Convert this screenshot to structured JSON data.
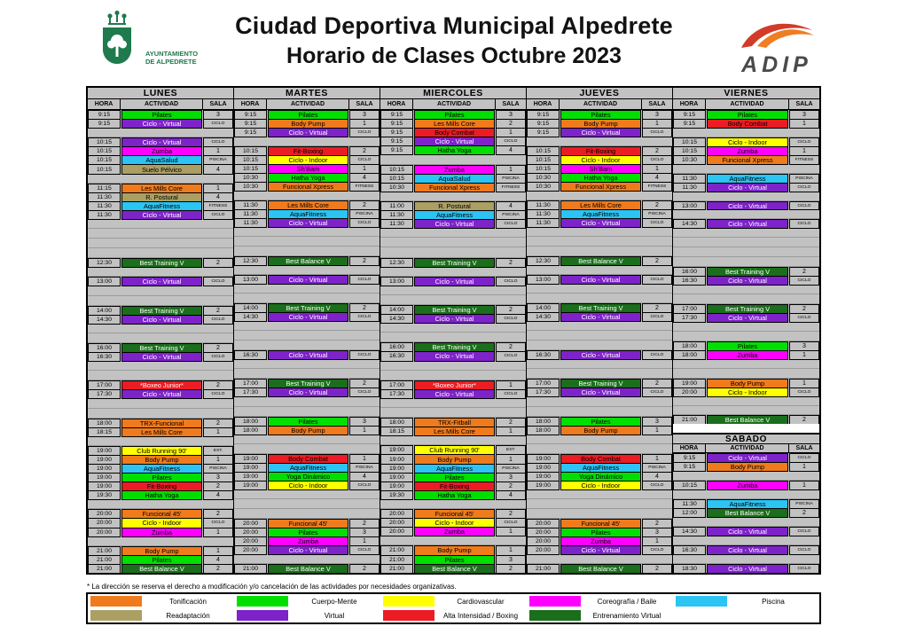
{
  "header": {
    "title_line1": "Ciudad Deportiva Municipal Alpedrete",
    "title_line2": "Horario de Clases Octubre 2023",
    "crest_text_line1": "AYUNTAMIENTO",
    "crest_text_line2": "DE ALPEDRETE",
    "adip_word": "ADIP"
  },
  "columns": {
    "hora": "HORA",
    "actividad": "ACTIVIDAD",
    "sala": "SALA"
  },
  "footnote": "* La dirección se reserva el derecho a modificación y/o cancelación de las actividades por necesidades organizativas.",
  "colors": {
    "table_gray": "#c2c2c2",
    "crest_green": "#1f7a4d",
    "adip_red": "#d23b27",
    "adip_orange": "#ef7d22"
  },
  "categories": {
    "tonificacion": {
      "label": "Tonificación",
      "color": "#ef7b1d",
      "text": "#000000"
    },
    "cuerpo_mente": {
      "label": "Cuerpo-Mente",
      "color": "#00df00",
      "text": "#000000"
    },
    "cardiovascular": {
      "label": "Cardiovascular",
      "color": "#ffff00",
      "text": "#000000"
    },
    "coreografia": {
      "label": "Coreografía / Baile",
      "color": "#ff00ff",
      "text": "#000000"
    },
    "piscina": {
      "label": "Piscina",
      "color": "#2bc4f3",
      "text": "#000000"
    },
    "readaptacion": {
      "label": "Readaptación",
      "color": "#ab9f63",
      "text": "#000000"
    },
    "virtual": {
      "label": "Virtual",
      "color": "#7e22c9",
      "text": "#ffffff"
    },
    "alta_intensidad": {
      "label": "Alta Intensidad / Boxing",
      "color": "#ec1c24",
      "text": "#000000"
    },
    "entrenamiento_virtual": {
      "label": "Entrenamiento Virtual",
      "color": "#1b6e1b",
      "text": "#ffffff"
    }
  },
  "legend": {
    "rows": [
      [
        "tonificacion",
        "cuerpo_mente",
        "cardiovascular",
        "coreografia",
        "piscina"
      ],
      [
        "readaptacion",
        "virtual",
        "alta_intensidad",
        "entrenamiento_virtual",
        null
      ]
    ]
  },
  "days": [
    {
      "name": "LUNES",
      "rows": [
        [
          "9:15",
          "Pilates",
          "3",
          "cuerpo_mente"
        ],
        [
          "9:15",
          "Ciclo - Virtual",
          "CICLO",
          "virtual"
        ],
        null,
        [
          "10:15",
          "Ciclo - Virtual",
          "CICLO",
          "virtual"
        ],
        [
          "10:15",
          "Zumba",
          "1",
          "coreografia"
        ],
        [
          "10:15",
          "AquaSalud",
          "PISCINA",
          "piscina"
        ],
        [
          "10:15",
          "Suelo Pélvico",
          "4",
          "readaptacion"
        ],
        null,
        [
          "11:15",
          "Les Mills Core",
          "1",
          "tonificacion"
        ],
        [
          "11:30",
          "R. Postural",
          "4",
          "readaptacion"
        ],
        [
          "11:30",
          "AquaFitness",
          "FITNESS",
          "piscina"
        ],
        [
          "11:30",
          "Ciclo - Virtual",
          "CICLO",
          "virtual"
        ],
        null,
        null,
        null,
        null,
        [
          "12:30",
          "Best Training V",
          "2",
          "entrenamiento_virtual"
        ],
        null,
        [
          "13:00",
          "Ciclo - Virtual",
          "CICLO",
          "virtual"
        ],
        null,
        null,
        [
          "14:00",
          "Best Training V",
          "2",
          "entrenamiento_virtual"
        ],
        [
          "14:30",
          "Ciclo - Virtual",
          "CICLO",
          "virtual"
        ],
        null,
        null,
        [
          "16:00",
          "Best Training V",
          "2",
          "entrenamiento_virtual"
        ],
        [
          "16:30",
          "Ciclo - Virtual",
          "CICLO",
          "virtual"
        ],
        null,
        null,
        [
          "17:00",
          "*Boxeo Junior*",
          "2",
          "alta_intensidad",
          "w"
        ],
        [
          "17:30",
          "Ciclo - Virtual",
          "CICLO",
          "virtual"
        ],
        null,
        null,
        [
          "18:00",
          "TRX-Funcional",
          "2",
          "tonificacion"
        ],
        [
          "18:15",
          "Les Mills Core",
          "1",
          "tonificacion"
        ],
        null,
        [
          "19:00",
          "Club Running 90'",
          "EXT.",
          "cardiovascular"
        ],
        [
          "19:00",
          "Body Pump",
          "1",
          "tonificacion"
        ],
        [
          "19:00",
          "AquaFitness",
          "PISCINA",
          "piscina"
        ],
        [
          "19:00",
          "Pilates",
          "3",
          "cuerpo_mente"
        ],
        [
          "19:00",
          "Fit-Boxing",
          "2",
          "alta_intensidad"
        ],
        [
          "19:30",
          "Hatha Yoga",
          "4",
          "cuerpo_mente"
        ],
        null,
        [
          "20:00",
          "Funcional 45'",
          "2",
          "tonificacion"
        ],
        [
          "20:00",
          "Ciclo - Indoor",
          "CICLO",
          "cardiovascular"
        ],
        [
          "20:00",
          "Zumba",
          "1",
          "coreografia"
        ],
        null,
        [
          "21:00",
          "Body Pump",
          "1",
          "tonificacion"
        ],
        [
          "21:00",
          "Pilates",
          "4",
          "cuerpo_mente"
        ],
        [
          "21:00",
          "Best Balance V",
          "2",
          "entrenamiento_virtual"
        ]
      ]
    },
    {
      "name": "MARTES",
      "rows": [
        [
          "9:15",
          "Pilates",
          "3",
          "cuerpo_mente"
        ],
        [
          "9:15",
          "Body Pump",
          "1",
          "tonificacion"
        ],
        [
          "9:15",
          "Ciclo - Virtual",
          "CICLO",
          "virtual"
        ],
        null,
        [
          "10:15",
          "Fit-Boxing",
          "2",
          "alta_intensidad"
        ],
        [
          "10:15",
          "Ciclo - Indoor",
          "CICLO",
          "cardiovascular"
        ],
        [
          "10:15",
          "Sh'Bam",
          "1",
          "coreografia"
        ],
        [
          "10:30",
          "Hatha Yoga",
          "4",
          "cuerpo_mente"
        ],
        [
          "10:30",
          "Funcional Xpress",
          "FITNESS",
          "tonificacion"
        ],
        null,
        [
          "11:30",
          "Les Mills Core",
          "2",
          "tonificacion"
        ],
        [
          "11:30",
          "AquaFitness",
          "PISCINA",
          "piscina"
        ],
        [
          "11:30",
          "Ciclo - Virtual",
          "CICLO",
          "virtual"
        ],
        null,
        null,
        null,
        [
          "12:30",
          "Best Balance V",
          "2",
          "entrenamiento_virtual"
        ],
        null,
        [
          "13:00",
          "Ciclo - Virtual",
          "CICLO",
          "virtual"
        ],
        null,
        null,
        [
          "14:00",
          "Best Training V",
          "2",
          "entrenamiento_virtual"
        ],
        [
          "14:30",
          "Ciclo - Virtual",
          "CICLO",
          "virtual"
        ],
        null,
        null,
        null,
        [
          "16:30",
          "Ciclo - Virtual",
          "CICLO",
          "virtual"
        ],
        null,
        null,
        [
          "17:00",
          "Best Training V",
          "2",
          "entrenamiento_virtual"
        ],
        [
          "17:30",
          "Ciclo - Virtual",
          "CICLO",
          "virtual"
        ],
        null,
        null,
        [
          "18:00",
          "Pilates",
          "3",
          "cuerpo_mente"
        ],
        [
          "18:00",
          "Body Pump",
          "1",
          "tonificacion"
        ],
        null,
        null,
        [
          "19:00",
          "Body Combat",
          "1",
          "alta_intensidad"
        ],
        [
          "19:00",
          "AquaFitness",
          "PISCINA",
          "piscina"
        ],
        [
          "19:00",
          "Yoga Dinámico",
          "4",
          "cuerpo_mente"
        ],
        [
          "19:00",
          "Ciclo - Indoor",
          "CICLO",
          "cardiovascular"
        ],
        null,
        null,
        null,
        [
          "20:00",
          "Funcional 45'",
          "2",
          "tonificacion"
        ],
        [
          "20:00",
          "Pilates",
          "3",
          "cuerpo_mente"
        ],
        [
          "20:00",
          "Zumba",
          "1",
          "coreografia"
        ],
        [
          "20:00",
          "Ciclo - Virtual",
          "CICLO",
          "virtual"
        ],
        null,
        [
          "21:00",
          "Best Balance V",
          "2",
          "entrenamiento_virtual"
        ]
      ]
    },
    {
      "name": "MIERCOLES",
      "rows": [
        [
          "9:15",
          "Pilates",
          "3",
          "cuerpo_mente"
        ],
        [
          "9:15",
          "Les Mills Core",
          "2",
          "tonificacion"
        ],
        [
          "9:15",
          "Body Combat",
          "1",
          "alta_intensidad"
        ],
        [
          "9:15",
          "Ciclo - Virtual",
          "CICLO",
          "virtual"
        ],
        [
          "9:15",
          "Hatha Yoga",
          "4",
          "cuerpo_mente"
        ],
        null,
        [
          "10:15",
          "Zumba",
          "1",
          "coreografia"
        ],
        [
          "10:15",
          "AquaSalud",
          "PISCINA",
          "piscina"
        ],
        [
          "10:30",
          "Funcional Xpress",
          "FITNESS",
          "tonificacion"
        ],
        null,
        [
          "11:00",
          "R. Postural",
          "4",
          "readaptacion"
        ],
        [
          "11:30",
          "AquaFitness",
          "PISCINA",
          "piscina"
        ],
        [
          "11:30",
          "Ciclo - Virtual",
          "CICLO",
          "virtual"
        ],
        null,
        null,
        null,
        [
          "12:30",
          "Best Training V",
          "2",
          "entrenamiento_virtual"
        ],
        null,
        [
          "13:00",
          "Ciclo - Virtual",
          "CICLO",
          "virtual"
        ],
        null,
        null,
        [
          "14:00",
          "Best Training V",
          "2",
          "entrenamiento_virtual"
        ],
        [
          "14:30",
          "Ciclo - Virtual",
          "CICLO",
          "virtual"
        ],
        null,
        null,
        [
          "16:00",
          "Best Training V",
          "2",
          "entrenamiento_virtual"
        ],
        [
          "16:30",
          "Ciclo - Virtual",
          "CICLO",
          "virtual"
        ],
        null,
        null,
        [
          "17:00",
          "*Boxeo Junior*",
          "1",
          "alta_intensidad",
          "w"
        ],
        [
          "17:30",
          "Ciclo - Virtual",
          "CICLO",
          "virtual"
        ],
        null,
        null,
        [
          "18:00",
          "TRX-Fitball",
          "2",
          "tonificacion"
        ],
        [
          "18:15",
          "Les Mills Core",
          "1",
          "tonificacion"
        ],
        null,
        [
          "19:00",
          "Club Running 90'",
          "EXT.",
          "cardiovascular"
        ],
        [
          "19:00",
          "Body Pump",
          "1",
          "tonificacion"
        ],
        [
          "19:00",
          "AquaFitness",
          "PISCINA",
          "piscina"
        ],
        [
          "19:00",
          "Pilates",
          "3",
          "cuerpo_mente"
        ],
        [
          "19:00",
          "Fit-Boxing",
          "2",
          "alta_intensidad"
        ],
        [
          "19:30",
          "Hatha Yoga",
          "4",
          "cuerpo_mente"
        ],
        null,
        [
          "20:00",
          "Funcional 45'",
          "2",
          "tonificacion"
        ],
        [
          "20:00",
          "Ciclo - Indoor",
          "CICLO",
          "cardiovascular"
        ],
        [
          "20:00",
          "Zumba",
          "1",
          "coreografia"
        ],
        null,
        [
          "21:00",
          "Body Pump",
          "1",
          "tonificacion"
        ],
        [
          "21:00",
          "Pilates",
          "3",
          "cuerpo_mente"
        ],
        [
          "21:00",
          "Best Balance V",
          "2",
          "entrenamiento_virtual"
        ]
      ]
    },
    {
      "name": "JUEVES",
      "rows": [
        [
          "9:15",
          "Pilates",
          "3",
          "cuerpo_mente"
        ],
        [
          "9:15",
          "Body Pump",
          "1",
          "tonificacion"
        ],
        [
          "9:15",
          "Ciclo - Virtual",
          "CICLO",
          "virtual"
        ],
        null,
        [
          "10:15",
          "Fit-Boxing",
          "2",
          "alta_intensidad"
        ],
        [
          "10:15",
          "Ciclo - Indoor",
          "CICLO",
          "cardiovascular"
        ],
        [
          "10:15",
          "Sh'Bam",
          "1",
          "coreografia"
        ],
        [
          "10:30",
          "Hatha Yoga",
          "4",
          "cuerpo_mente"
        ],
        [
          "10:30",
          "Funcional Xpress",
          "FITNESS",
          "tonificacion"
        ],
        null,
        [
          "11:30",
          "Les Mills Core",
          "2",
          "tonificacion"
        ],
        [
          "11:30",
          "AquaFitness",
          "PISCINA",
          "piscina"
        ],
        [
          "11:30",
          "Ciclo - Virtual",
          "CICLO",
          "virtual"
        ],
        null,
        null,
        null,
        [
          "12:30",
          "Best Balance V",
          "2",
          "entrenamiento_virtual"
        ],
        null,
        [
          "13:00",
          "Ciclo - Virtual",
          "CICLO",
          "virtual"
        ],
        null,
        null,
        [
          "14:00",
          "Best Training V",
          "2",
          "entrenamiento_virtual"
        ],
        [
          "14:30",
          "Ciclo - Virtual",
          "CICLO",
          "virtual"
        ],
        null,
        null,
        null,
        [
          "16:30",
          "Ciclo - Virtual",
          "CICLO",
          "virtual"
        ],
        null,
        null,
        [
          "17:00",
          "Best Training V",
          "2",
          "entrenamiento_virtual"
        ],
        [
          "17:30",
          "Ciclo - Virtual",
          "CICLO",
          "virtual"
        ],
        null,
        null,
        [
          "18:00",
          "Pilates",
          "3",
          "cuerpo_mente"
        ],
        [
          "18:00",
          "Body Pump",
          "1",
          "tonificacion"
        ],
        null,
        null,
        [
          "19:00",
          "Body Combat",
          "1",
          "alta_intensidad"
        ],
        [
          "19:00",
          "AquaFitness",
          "PISCINA",
          "piscina"
        ],
        [
          "19:00",
          "Yoga Dinámico",
          "4",
          "cuerpo_mente"
        ],
        [
          "19:00",
          "Ciclo - Indoor",
          "CICLO",
          "cardiovascular"
        ],
        null,
        null,
        null,
        [
          "20:00",
          "Funcional 45'",
          "2",
          "tonificacion"
        ],
        [
          "20:00",
          "Pilates",
          "3",
          "cuerpo_mente"
        ],
        [
          "20:00",
          "Zumba",
          "1",
          "coreografia"
        ],
        [
          "20:00",
          "Ciclo - Virtual",
          "CICLO",
          "virtual"
        ],
        null,
        [
          "21:00",
          "Best Balance V",
          "2",
          "entrenamiento_virtual"
        ]
      ]
    },
    {
      "name": "VIERNES",
      "rows": [
        [
          "9:15",
          "Pilates",
          "3",
          "cuerpo_mente"
        ],
        [
          "9:15",
          "Body Combat",
          "1",
          "alta_intensidad"
        ],
        null,
        [
          "10:15",
          "Ciclo - Indoor",
          "CICLO",
          "cardiovascular"
        ],
        [
          "10:15",
          "Zumba",
          "1",
          "coreografia"
        ],
        [
          "10:30",
          "Funcional Xpress",
          "FITNESS",
          "tonificacion"
        ],
        null,
        [
          "11:30",
          "AquaFitness",
          "PISCINA",
          "piscina"
        ],
        [
          "11:30",
          "Ciclo - Virtual",
          "CICLO",
          "virtual"
        ],
        null,
        [
          "13:00",
          "Ciclo - Virtual",
          "CICLO",
          "virtual"
        ],
        null,
        [
          "14:30",
          "Ciclo - Virtual",
          "CICLO",
          "virtual"
        ],
        null,
        null,
        null,
        null,
        [
          "16:00",
          "Best Training V",
          "2",
          "entrenamiento_virtual"
        ],
        [
          "16:30",
          "Ciclo - Virtual",
          "CICLO",
          "virtual"
        ],
        null,
        null,
        [
          "17:00",
          "Best Training V",
          "2",
          "entrenamiento_virtual"
        ],
        [
          "17:30",
          "Ciclo - Virtual",
          "CICLO",
          "virtual"
        ],
        null,
        null,
        [
          "18:00",
          "Pilates",
          "3",
          "cuerpo_mente"
        ],
        [
          "18:00",
          "Zumba",
          "1",
          "coreografia"
        ],
        null,
        null,
        [
          "19:00",
          "Body Pump",
          "1",
          "tonificacion"
        ],
        [
          "20:00",
          "Ciclo - Indoor",
          "CICLO",
          "cardiovascular"
        ],
        null,
        null,
        [
          "21:00",
          "Best Balance V",
          "2",
          "entrenamiento_virtual"
        ]
      ]
    }
  ],
  "sabado": {
    "name": "SABADO",
    "rows": [
      [
        "9:15",
        "Ciclo - Virtual",
        "CICLO",
        "virtual"
      ],
      [
        "9:15",
        "Body Pump",
        "1",
        "tonificacion"
      ],
      null,
      [
        "10:15",
        "Zumba",
        "1",
        "coreografia"
      ],
      null,
      [
        "11:30",
        "AquaFitness",
        "PISCINA",
        "piscina"
      ],
      [
        "12:00",
        "Best Balance V",
        "2",
        "entrenamiento_virtual"
      ],
      null,
      [
        "14:30",
        "Ciclo - Virtual",
        "CICLO",
        "virtual"
      ],
      null,
      [
        "16:30",
        "Ciclo - Virtual",
        "CICLO",
        "virtual"
      ],
      null,
      [
        "18:30",
        "Ciclo - Virtual",
        "CICLO",
        "virtual"
      ]
    ]
  }
}
